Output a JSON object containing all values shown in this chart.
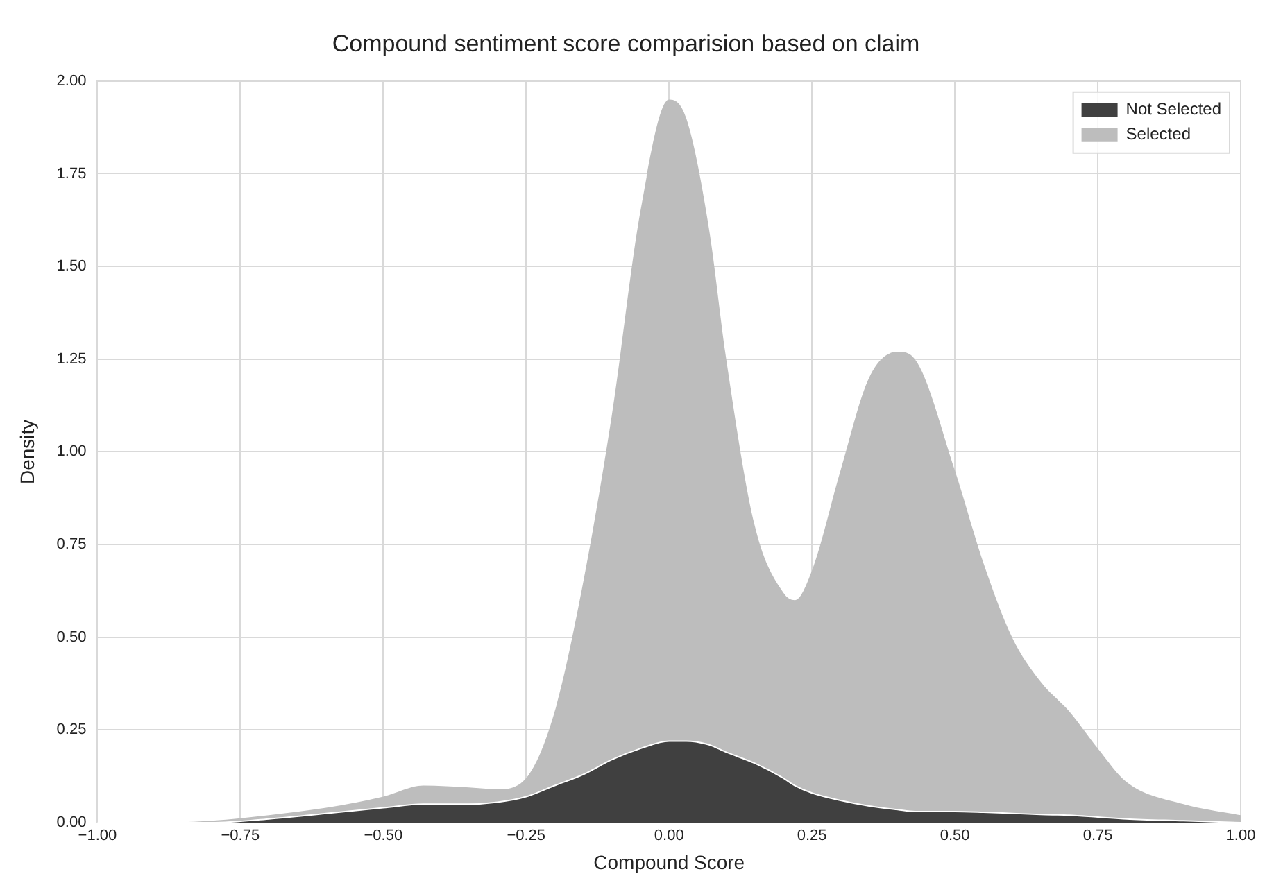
{
  "chart_data": {
    "type": "area",
    "title": "Compound sentiment score comparision based on claim",
    "xlabel": "Compound Score",
    "ylabel": "Density",
    "x": [
      -1.0,
      -0.9,
      -0.8,
      -0.7,
      -0.6,
      -0.5,
      -0.43,
      -0.35,
      -0.3,
      -0.25,
      -0.2,
      -0.15,
      -0.1,
      -0.05,
      0,
      0.03,
      0.07,
      0.1,
      0.15,
      0.2,
      0.22,
      0.25,
      0.3,
      0.35,
      0.4,
      0.43,
      0.5,
      0.55,
      0.6,
      0.65,
      0.7,
      0.75,
      0.8,
      0.9,
      1.0
    ],
    "stacked": true,
    "series": [
      {
        "name": "Not Selected",
        "color": "#404040",
        "values": [
          0,
          0,
          0,
          0.01,
          0.025,
          0.04,
          0.05,
          0.05,
          0.055,
          0.07,
          0.1,
          0.13,
          0.17,
          0.2,
          0.22,
          0.22,
          0.21,
          0.19,
          0.16,
          0.12,
          0.1,
          0.08,
          0.06,
          0.045,
          0.035,
          0.03,
          0.03,
          0.028,
          0.025,
          0.022,
          0.02,
          0.015,
          0.01,
          0.005,
          0
        ]
      },
      {
        "name": "Selected",
        "color": "#bdbdbd",
        "values": [
          0,
          0,
          0.005,
          0.01,
          0.015,
          0.03,
          0.05,
          0.045,
          0.035,
          0.05,
          0.2,
          0.52,
          0.93,
          1.45,
          1.73,
          1.68,
          1.39,
          1.06,
          0.64,
          0.5,
          0.5,
          0.6,
          0.89,
          1.155,
          1.235,
          1.22,
          0.92,
          0.672,
          0.475,
          0.358,
          0.28,
          0.185,
          0.1,
          0.045,
          0.02
        ]
      }
    ],
    "xlim": [
      -1.0,
      1.0
    ],
    "xticks": [
      {
        "value": -1,
        "label": "−1.00"
      },
      {
        "value": -0.75,
        "label": "−0.75"
      },
      {
        "value": -0.5,
        "label": "−0.50"
      },
      {
        "value": -0.25,
        "label": "−0.25"
      },
      {
        "value": 0,
        "label": "0.00"
      },
      {
        "value": 0.25,
        "label": "0.25"
      },
      {
        "value": 0.5,
        "label": "0.50"
      },
      {
        "value": 0.75,
        "label": "0.75"
      },
      {
        "value": 1,
        "label": "1.00"
      }
    ],
    "ylim": [
      0,
      2.0
    ],
    "yticks": [
      {
        "value": 0,
        "label": "0.00"
      },
      {
        "value": 0.25,
        "label": "0.25"
      },
      {
        "value": 0.5,
        "label": "0.50"
      },
      {
        "value": 0.75,
        "label": "0.75"
      },
      {
        "value": 1,
        "label": "1.00"
      },
      {
        "value": 1.25,
        "label": "1.25"
      },
      {
        "value": 1.5,
        "label": "1.50"
      },
      {
        "value": 1.75,
        "label": "1.75"
      },
      {
        "value": 2,
        "label": "2.00"
      }
    ],
    "grid": true,
    "legend": "top right",
    "marker": "none"
  }
}
